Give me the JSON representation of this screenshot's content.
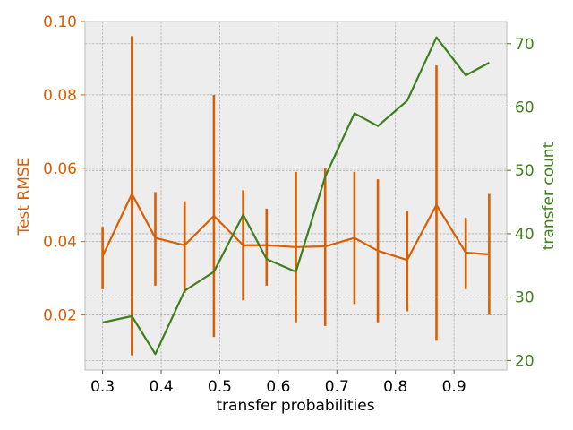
{
  "chart_data": {
    "type": "line",
    "xlabel": "transfer probabilities",
    "ylabel_left": "Test RMSE",
    "ylabel_right": "transfer count",
    "x": [
      0.3,
      0.35,
      0.39,
      0.44,
      0.49,
      0.54,
      0.58,
      0.63,
      0.68,
      0.73,
      0.77,
      0.82,
      0.87,
      0.92,
      0.96
    ],
    "x_ticks": [
      "0.3",
      "0.4",
      "0.5",
      "0.6",
      "0.7",
      "0.8",
      "0.9"
    ],
    "x_tick_values": [
      0.3,
      0.4,
      0.5,
      0.6,
      0.7,
      0.8,
      0.9
    ],
    "xlim": [
      0.27,
      0.99
    ],
    "y_left_ticks": [
      "0.02",
      "0.04",
      "0.06",
      "0.08",
      "0.10"
    ],
    "y_left_tick_values": [
      0.02,
      0.04,
      0.06,
      0.08,
      0.1
    ],
    "ylim_left": [
      0.005,
      0.1
    ],
    "y_right_ticks": [
      "20",
      "30",
      "40",
      "50",
      "60",
      "70"
    ],
    "y_right_tick_values": [
      20,
      30,
      40,
      50,
      60,
      70
    ],
    "ylim_right": [
      18.5,
      73.5
    ],
    "grid": true,
    "series": [
      {
        "axis": "left",
        "color": "#d95f02",
        "values": [
          0.036,
          0.053,
          0.041,
          0.039,
          0.047,
          0.039,
          0.039,
          0.0385,
          0.0387,
          0.041,
          0.0375,
          0.035,
          0.05,
          0.037,
          0.0365
        ],
        "err_low": [
          0.027,
          0.009,
          0.028,
          0.026,
          0.014,
          0.024,
          0.028,
          0.018,
          0.017,
          0.023,
          0.018,
          0.021,
          0.013,
          0.027,
          0.02
        ],
        "err_high": [
          0.044,
          0.096,
          0.0535,
          0.051,
          0.08,
          0.054,
          0.049,
          0.059,
          0.06,
          0.059,
          0.057,
          0.0485,
          0.088,
          0.0465,
          0.053
        ]
      },
      {
        "axis": "right",
        "color": "#3f7f1d",
        "values": [
          26,
          27,
          21,
          31,
          34,
          43,
          36,
          34,
          49,
          59,
          57,
          61,
          71,
          65,
          67
        ]
      }
    ]
  }
}
